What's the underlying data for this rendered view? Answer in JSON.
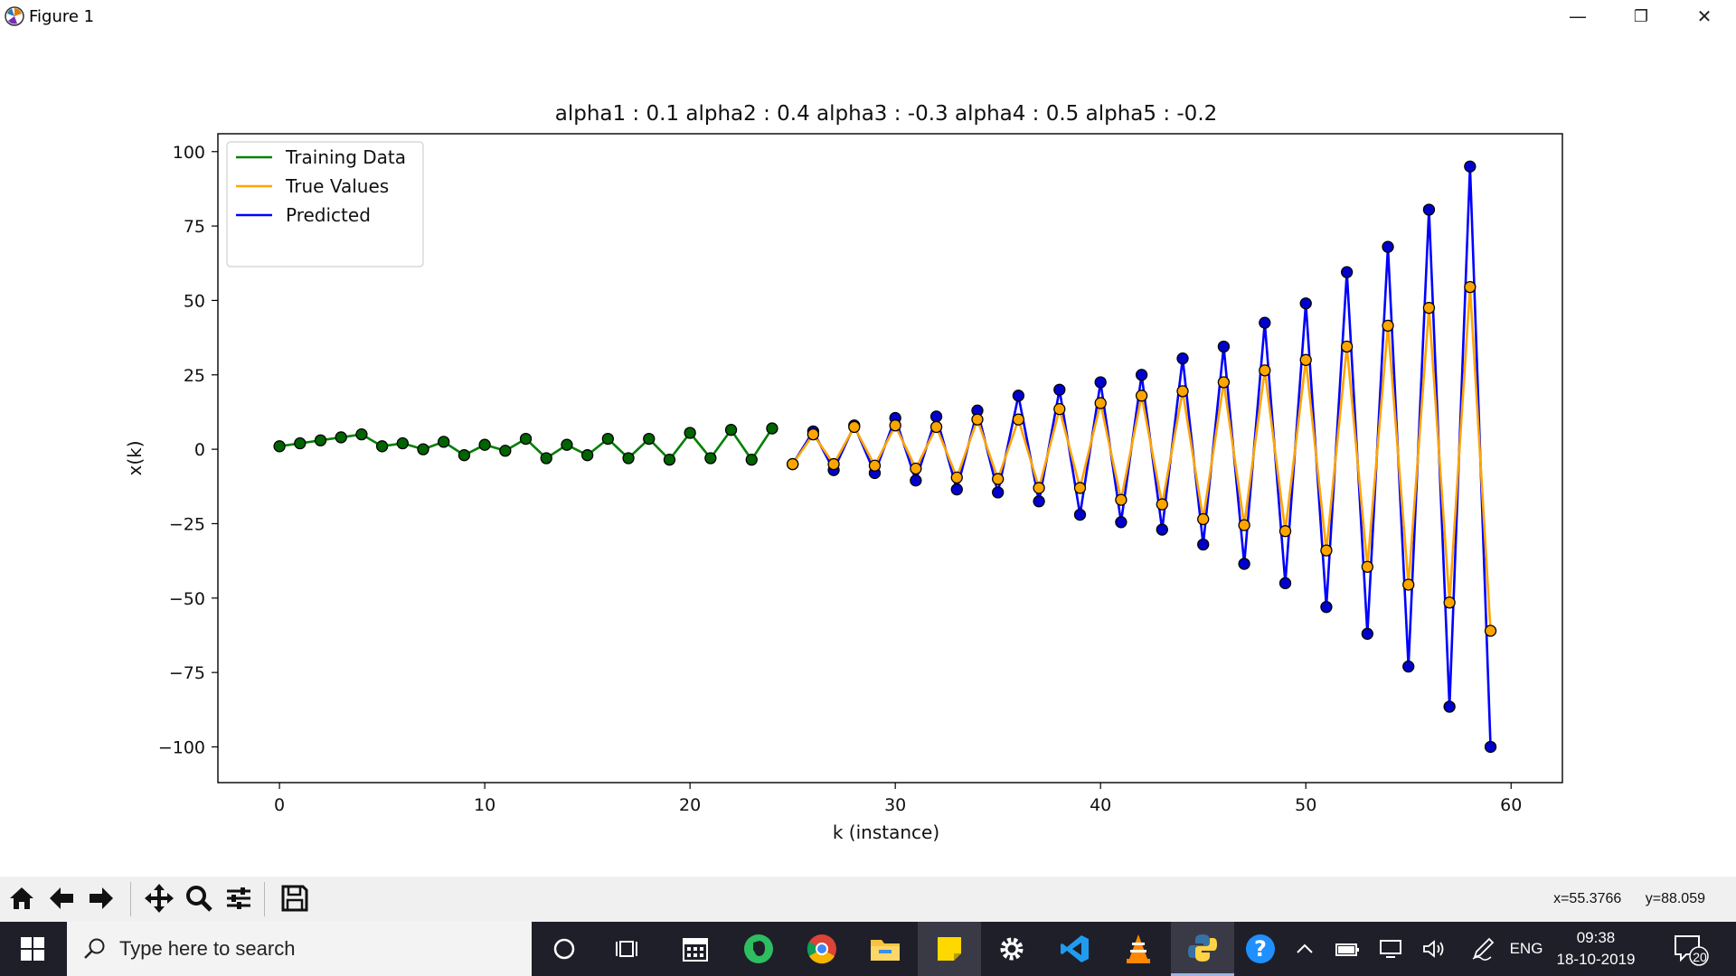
{
  "window": {
    "title": "Figure 1",
    "buttons": {
      "minimize": "—",
      "restore": "❐",
      "close": "✕"
    }
  },
  "chart_data": {
    "type": "line",
    "title": "alpha1 : 0.1 alpha2 : 0.4 alpha3 : -0.3 alpha4 : 0.5 alpha5 : -0.2",
    "xlabel": "k (instance)",
    "ylabel": "x(k)",
    "xlim": [
      -3,
      62.5
    ],
    "ylim": [
      -112,
      106
    ],
    "xticks": [
      0,
      10,
      20,
      30,
      40,
      50,
      60
    ],
    "yticks": [
      100,
      75,
      50,
      25,
      0,
      -25,
      -50,
      -75,
      -100
    ],
    "ytick_labels": [
      "100",
      "75",
      "50",
      "25",
      "0",
      "−25",
      "−50",
      "−75",
      "−100"
    ],
    "legend": {
      "placement": "upper-left"
    },
    "grid": false,
    "series": [
      {
        "name": "Training Data",
        "color": "#008000",
        "marker_color": "#006400",
        "x": [
          0,
          1,
          2,
          3,
          4,
          5,
          6,
          7,
          8,
          9,
          10,
          11,
          12,
          13,
          14,
          15,
          16,
          17,
          18,
          19,
          20,
          21,
          22,
          23,
          24
        ],
        "y": [
          1,
          2,
          3,
          4,
          5,
          1,
          2,
          0,
          2.5,
          -2,
          1.5,
          -0.5,
          3.5,
          -3,
          1.5,
          -2,
          3.5,
          -3,
          3.5,
          -3.5,
          5.5,
          -3,
          6.5,
          -3.5,
          7
        ]
      },
      {
        "name": "True Values",
        "color": "#FFA500",
        "marker_color": "#FFA500",
        "x": [
          25,
          26,
          27,
          28,
          29,
          30,
          31,
          32,
          33,
          34,
          35,
          36,
          37,
          38,
          39,
          40,
          41,
          42,
          43,
          44,
          45,
          46,
          47,
          48,
          49,
          50,
          51,
          52,
          53,
          54,
          55,
          56,
          57,
          58,
          59
        ],
        "y": [
          -5,
          5,
          -5,
          7.5,
          -5.5,
          8,
          -6.5,
          7.5,
          -9.5,
          10,
          -10,
          10,
          -13,
          13.5,
          -13,
          15.5,
          -17,
          18,
          -18.5,
          19.5,
          -23.5,
          22.5,
          -25.5,
          26.5,
          -27.5,
          30,
          -34,
          34.5,
          -39.5,
          41.5,
          -45.5,
          47.5,
          -51.5,
          54.5,
          -61
        ]
      },
      {
        "name": "Predicted",
        "color": "#0000FF",
        "marker_color": "#0000CD",
        "x": [
          25,
          26,
          27,
          28,
          29,
          30,
          31,
          32,
          33,
          34,
          35,
          36,
          37,
          38,
          39,
          40,
          41,
          42,
          43,
          44,
          45,
          46,
          47,
          48,
          49,
          50,
          51,
          52,
          53,
          54,
          55,
          56,
          57,
          58,
          59
        ],
        "y": [
          -5,
          6,
          -7,
          8,
          -8,
          10.5,
          -10.5,
          11,
          -13.5,
          13,
          -14.5,
          18,
          -17.5,
          20,
          -22,
          22.5,
          -24.5,
          25,
          -27,
          30.5,
          -32,
          34.5,
          -38.5,
          42.5,
          -45,
          49,
          -53,
          59.5,
          -62,
          68,
          -73,
          80.5,
          -86.5,
          95,
          -100
        ]
      }
    ]
  },
  "toolbar": {
    "buttons": [
      "home-icon",
      "back-arrow-icon",
      "forward-arrow-icon",
      "pan-icon",
      "zoom-icon",
      "configure-subplots-icon",
      "save-icon"
    ],
    "coords": {
      "x": "x=55.3766",
      "y": "y=88.059"
    }
  },
  "taskbar": {
    "search_placeholder": "Type here to search",
    "apps": [
      "cortana-icon",
      "task-view-icon",
      "calendar-app-icon",
      "evernote-icon",
      "chrome-icon",
      "file-explorer-icon",
      "sticky-notes-icon",
      "settings-icon",
      "vscode-icon",
      "vlc-icon",
      "python-icon",
      "help-icon"
    ],
    "tray": {
      "language": "ENG",
      "time": "09:38",
      "date": "18-10-2019",
      "notifications": "20"
    }
  }
}
